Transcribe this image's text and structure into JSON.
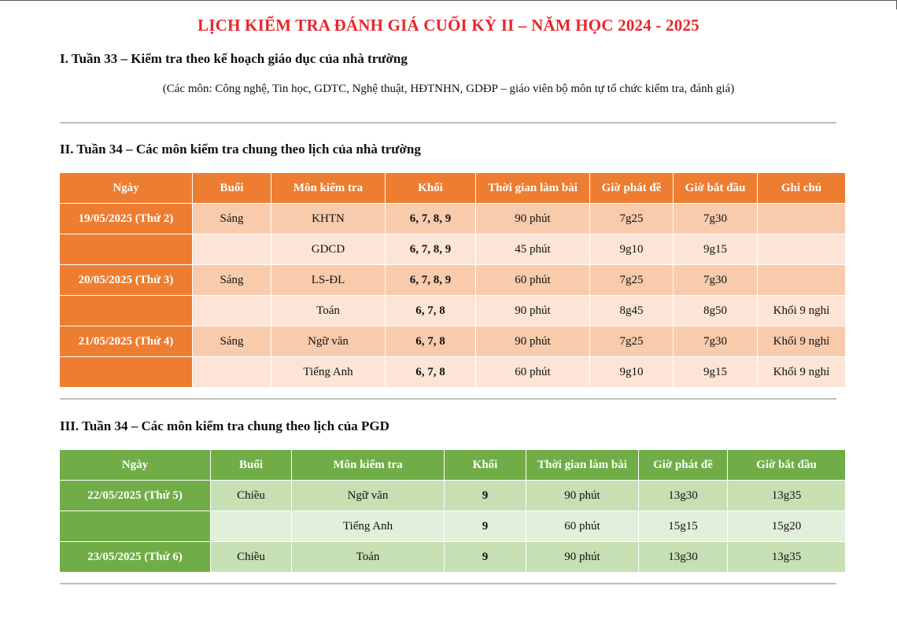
{
  "title": "LỊCH KIỂM TRA ĐÁNH GIÁ CUỐI KỲ II – NĂM HỌC 2024 - 2025",
  "section1": {
    "heading": "I. Tuần 33 – Kiểm tra theo kế hoạch giáo dục của nhà trường",
    "note": "(Các môn: Công nghệ, Tin học, GDTC, Nghệ thuật, HĐTNHN, GDĐP – giáo viên bộ môn tự tổ chức kiểm tra, đánh giá)"
  },
  "section2": {
    "heading": "II. Tuần 34 – Các môn kiểm tra chung theo lịch của nhà trường",
    "headers": [
      "Ngày",
      "Buổi",
      "Môn kiểm tra",
      "Khối",
      "Thời gian làm bài",
      "Giờ phát đề",
      "Giờ bắt đầu",
      "Ghi chú"
    ],
    "rows": [
      [
        "19/05/2025 (Thứ 2)",
        "Sáng",
        "KHTN",
        "6, 7, 8, 9",
        "90 phút",
        "7g25",
        "7g30",
        ""
      ],
      [
        "",
        "",
        "GDCD",
        "6, 7, 8, 9",
        "45 phút",
        "9g10",
        "9g15",
        ""
      ],
      [
        "20/05/2025 (Thứ 3)",
        "Sáng",
        "LS-ĐL",
        "6, 7, 8, 9",
        "60 phút",
        "7g25",
        "7g30",
        ""
      ],
      [
        "",
        "",
        "Toán",
        "6, 7, 8",
        "90 phút",
        "8g45",
        "8g50",
        "Khối 9 nghỉ"
      ],
      [
        "21/05/2025 (Thứ 4)",
        "Sáng",
        "Ngữ văn",
        "6, 7, 8",
        "90 phút",
        "7g25",
        "7g30",
        "Khối 9 nghỉ"
      ],
      [
        "",
        "",
        "Tiếng Anh",
        "6, 7, 8",
        "60 phút",
        "9g10",
        "9g15",
        "Khối 9 nghỉ"
      ]
    ]
  },
  "section3": {
    "heading": "III. Tuần 34 – Các môn kiểm tra chung theo lịch của PGD",
    "headers": [
      "Ngày",
      "Buổi",
      "Môn kiểm tra",
      "Khối",
      "Thời gian làm bài",
      "Giờ phát đề",
      "Giờ bắt đầu"
    ],
    "rows": [
      [
        "22/05/2025 (Thứ 5)",
        "Chiều",
        "Ngữ văn",
        "9",
        "90 phút",
        "13g30",
        "13g35"
      ],
      [
        "",
        "",
        "Tiếng Anh",
        "9",
        "60 phút",
        "15g15",
        "15g20"
      ],
      [
        "23/05/2025 (Thứ 6)",
        "Chiều",
        "Toán",
        "9",
        "90 phút",
        "13g30",
        "13g35"
      ]
    ]
  }
}
